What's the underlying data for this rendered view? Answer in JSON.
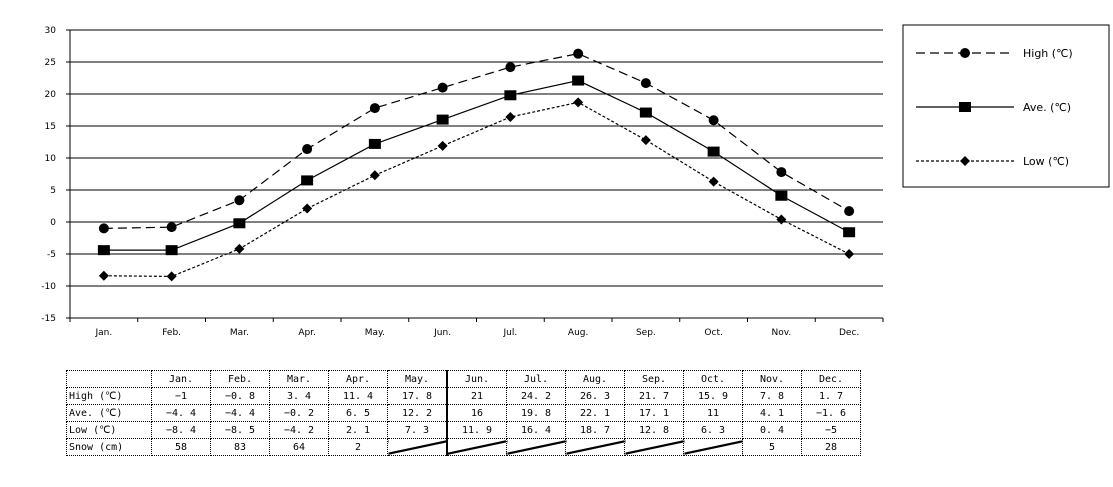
{
  "chart_data": {
    "type": "line",
    "categories": [
      "Jan.",
      "Feb.",
      "Mar.",
      "Apr.",
      "May.",
      "Jun.",
      "Jul.",
      "Aug.",
      "Sep.",
      "Oct.",
      "Nov.",
      "Dec."
    ],
    "yticks": [
      "30",
      "25",
      "20",
      "15",
      "10",
      "5",
      "0",
      "-5",
      "-10",
      "-15"
    ],
    "ylim": [
      -15,
      30
    ],
    "grid": true,
    "legend_position": "right",
    "series": [
      {
        "name": "High (℃)",
        "style": "dashed",
        "marker": "circle",
        "color": "#000000",
        "values": [
          -1,
          -0.8,
          3.4,
          11.4,
          17.8,
          21,
          24.2,
          26.3,
          21.7,
          15.9,
          7.8,
          1.7
        ]
      },
      {
        "name": "Ave. (℃)",
        "style": "solid",
        "marker": "square",
        "color": "#000000",
        "values": [
          -4.4,
          -4.4,
          -0.2,
          6.5,
          12.2,
          16,
          19.8,
          22.1,
          17.1,
          11,
          4.1,
          -1.6
        ]
      },
      {
        "name": "Low (℃)",
        "style": "dotted",
        "marker": "diamond",
        "color": "#000000",
        "values": [
          -8.4,
          -8.5,
          -4.2,
          2.1,
          7.3,
          11.9,
          16.4,
          18.7,
          12.8,
          6.3,
          0.4,
          -5
        ]
      }
    ]
  },
  "table": {
    "header": [
      "",
      "Jan.",
      "Feb.",
      "Mar.",
      "Apr.",
      "May.",
      "Jun.",
      "Jul.",
      "Aug.",
      "Sep.",
      "Oct.",
      "Nov.",
      "Dec."
    ],
    "rows": [
      {
        "label": "High  (℃)",
        "cells": [
          "−1",
          "−0. 8",
          "3. 4",
          "11. 4",
          "17. 8",
          "21",
          "24. 2",
          "26. 3",
          "21. 7",
          "15. 9",
          "7. 8",
          "1. 7"
        ]
      },
      {
        "label": "Ave.  (℃)",
        "cells": [
          "−4. 4",
          "−4. 4",
          "−0. 2",
          "6. 5",
          "12. 2",
          "16",
          "19. 8",
          "22. 1",
          "17. 1",
          "11",
          "4. 1",
          "−1. 6"
        ]
      },
      {
        "label": "Low  (℃)",
        "cells": [
          "−8. 4",
          "−8. 5",
          "−4. 2",
          "2. 1",
          "7. 3",
          "11. 9",
          "16. 4",
          "18. 7",
          "12. 8",
          "6. 3",
          "0. 4",
          "−5"
        ]
      },
      {
        "label": "Snow (cm)",
        "cells": [
          "58",
          "83",
          "64",
          "2",
          "",
          "",
          "",
          "",
          "",
          "",
          "5",
          "28"
        ]
      }
    ]
  }
}
